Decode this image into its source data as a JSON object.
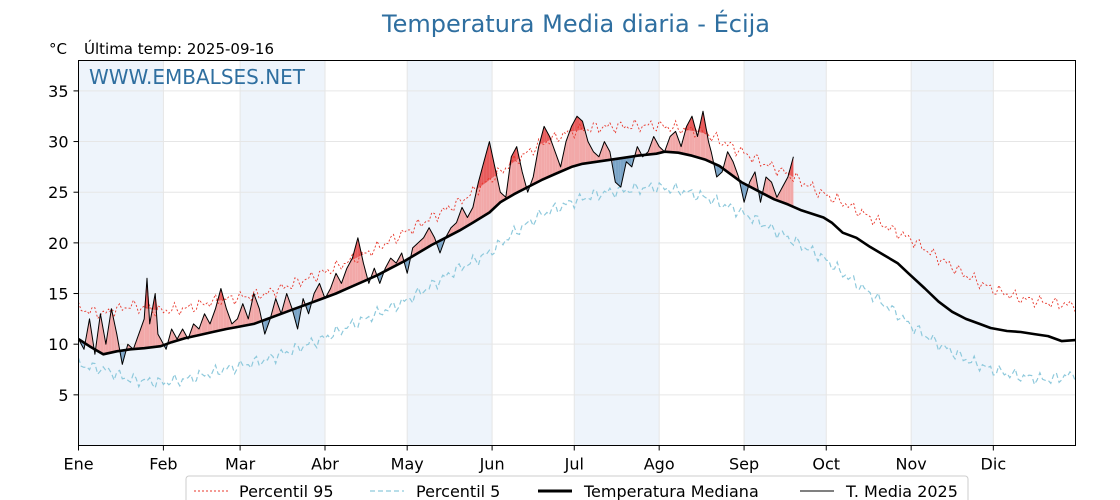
{
  "chart_data": {
    "type": "line",
    "title": "Temperatura Media diaria - Écija",
    "subtitle": "Última temp: 2025-09-16",
    "ylabel": "°C",
    "watermark": "WWW.EMBALSES.NET",
    "ylim": [
      0,
      38
    ],
    "yticks": [
      5,
      10,
      15,
      20,
      25,
      30,
      35
    ],
    "months": [
      "Ene",
      "Feb",
      "Mar",
      "Abr",
      "May",
      "Jun",
      "Jul",
      "Ago",
      "Sep",
      "Oct",
      "Nov",
      "Dic"
    ],
    "days_in_year": 365,
    "grid": true,
    "shaded_months": true,
    "legend_position": "bottom",
    "colors": {
      "p95": "#e8362a",
      "p5": "#8ec9dc",
      "median": "#000000",
      "current": "#000000",
      "above_fill": "#f2a8a8",
      "above_strong": "#e85c5c",
      "below_fill": "#7aa4c7",
      "month_shade": "#eef4fb",
      "title": "#2f6fa0"
    },
    "series": [
      {
        "name": "Percentil 95",
        "key": "p95",
        "style": "dotted",
        "points": [
          [
            1,
            13.5
          ],
          [
            10,
            13.0
          ],
          [
            20,
            13.8
          ],
          [
            31,
            13.3
          ],
          [
            40,
            13.5
          ],
          [
            50,
            14.2
          ],
          [
            59,
            14.6
          ],
          [
            70,
            15.0
          ],
          [
            80,
            16.0
          ],
          [
            90,
            17.0
          ],
          [
            100,
            18.2
          ],
          [
            110,
            19.5
          ],
          [
            120,
            21.0
          ],
          [
            130,
            22.5
          ],
          [
            140,
            24.0
          ],
          [
            151,
            26.2
          ],
          [
            160,
            28.0
          ],
          [
            170,
            29.8
          ],
          [
            181,
            31.0
          ],
          [
            190,
            31.4
          ],
          [
            200,
            31.5
          ],
          [
            212,
            31.6
          ],
          [
            220,
            31.3
          ],
          [
            230,
            30.8
          ],
          [
            243,
            29.0
          ],
          [
            250,
            28.0
          ],
          [
            260,
            26.8
          ],
          [
            273,
            24.8
          ],
          [
            280,
            24.0
          ],
          [
            290,
            22.5
          ],
          [
            300,
            21.0
          ],
          [
            304,
            20.5
          ],
          [
            315,
            18.5
          ],
          [
            325,
            16.8
          ],
          [
            334,
            15.5
          ],
          [
            345,
            14.5
          ],
          [
            355,
            14.1
          ],
          [
            365,
            13.8
          ]
        ]
      },
      {
        "name": "Percentil 5",
        "key": "p5",
        "style": "dashed",
        "points": [
          [
            1,
            8.0
          ],
          [
            10,
            7.5
          ],
          [
            20,
            6.5
          ],
          [
            31,
            6.2
          ],
          [
            40,
            6.5
          ],
          [
            50,
            7.2
          ],
          [
            59,
            7.8
          ],
          [
            70,
            8.5
          ],
          [
            80,
            9.5
          ],
          [
            90,
            10.5
          ],
          [
            100,
            11.8
          ],
          [
            110,
            13.0
          ],
          [
            120,
            14.2
          ],
          [
            130,
            15.8
          ],
          [
            140,
            17.5
          ],
          [
            151,
            19.0
          ],
          [
            160,
            21.0
          ],
          [
            170,
            22.8
          ],
          [
            181,
            24.0
          ],
          [
            190,
            24.8
          ],
          [
            200,
            25.2
          ],
          [
            212,
            25.5
          ],
          [
            220,
            25.2
          ],
          [
            230,
            24.5
          ],
          [
            243,
            23.0
          ],
          [
            250,
            22.0
          ],
          [
            260,
            20.5
          ],
          [
            273,
            18.5
          ],
          [
            280,
            17.0
          ],
          [
            290,
            15.0
          ],
          [
            300,
            13.0
          ],
          [
            304,
            12.0
          ],
          [
            315,
            10.0
          ],
          [
            325,
            8.5
          ],
          [
            334,
            7.5
          ],
          [
            345,
            6.8
          ],
          [
            355,
            6.5
          ],
          [
            365,
            7.0
          ]
        ]
      },
      {
        "name": "Temperatura Mediana",
        "key": "median",
        "style": "solid-thick",
        "points": [
          [
            1,
            10.5
          ],
          [
            5,
            9.8
          ],
          [
            10,
            9.0
          ],
          [
            15,
            9.3
          ],
          [
            20,
            9.5
          ],
          [
            25,
            9.6
          ],
          [
            31,
            9.8
          ],
          [
            35,
            10.2
          ],
          [
            40,
            10.6
          ],
          [
            45,
            10.9
          ],
          [
            50,
            11.2
          ],
          [
            55,
            11.5
          ],
          [
            59,
            11.7
          ],
          [
            65,
            12.0
          ],
          [
            70,
            12.5
          ],
          [
            75,
            13.0
          ],
          [
            80,
            13.5
          ],
          [
            85,
            14.0
          ],
          [
            90,
            14.5
          ],
          [
            95,
            15.0
          ],
          [
            100,
            15.6
          ],
          [
            105,
            16.2
          ],
          [
            110,
            16.8
          ],
          [
            115,
            17.5
          ],
          [
            120,
            18.2
          ],
          [
            125,
            19.0
          ],
          [
            130,
            19.8
          ],
          [
            135,
            20.5
          ],
          [
            140,
            21.2
          ],
          [
            145,
            22.0
          ],
          [
            151,
            23.0
          ],
          [
            155,
            24.0
          ],
          [
            160,
            24.8
          ],
          [
            165,
            25.5
          ],
          [
            170,
            26.2
          ],
          [
            175,
            26.8
          ],
          [
            181,
            27.5
          ],
          [
            185,
            27.8
          ],
          [
            190,
            28.0
          ],
          [
            195,
            28.2
          ],
          [
            200,
            28.4
          ],
          [
            205,
            28.6
          ],
          [
            212,
            28.8
          ],
          [
            215,
            29.0
          ],
          [
            220,
            28.9
          ],
          [
            225,
            28.6
          ],
          [
            230,
            28.2
          ],
          [
            235,
            27.6
          ],
          [
            243,
            26.0
          ],
          [
            250,
            25.0
          ],
          [
            255,
            24.3
          ],
          [
            260,
            23.8
          ],
          [
            265,
            23.2
          ],
          [
            273,
            22.5
          ],
          [
            276,
            22.0
          ],
          [
            280,
            21.0
          ],
          [
            285,
            20.5
          ],
          [
            290,
            19.6
          ],
          [
            295,
            18.8
          ],
          [
            300,
            18.0
          ],
          [
            304,
            17.0
          ],
          [
            310,
            15.5
          ],
          [
            315,
            14.2
          ],
          [
            320,
            13.2
          ],
          [
            325,
            12.5
          ],
          [
            330,
            12.0
          ],
          [
            334,
            11.6
          ],
          [
            340,
            11.3
          ],
          [
            345,
            11.2
          ],
          [
            350,
            11.0
          ],
          [
            355,
            10.8
          ],
          [
            360,
            10.3
          ],
          [
            365,
            10.4
          ]
        ]
      },
      {
        "name": "T. Media 2025",
        "key": "current",
        "style": "solid-thin",
        "points": [
          [
            1,
            10.5
          ],
          [
            3,
            9.5
          ],
          [
            5,
            12.5
          ],
          [
            7,
            9.0
          ],
          [
            9,
            13.0
          ],
          [
            11,
            10.0
          ],
          [
            13,
            13.5
          ],
          [
            15,
            11.0
          ],
          [
            17,
            8.0
          ],
          [
            19,
            10.0
          ],
          [
            21,
            9.5
          ],
          [
            23,
            11.0
          ],
          [
            25,
            12.5
          ],
          [
            26,
            16.5
          ],
          [
            27,
            12.0
          ],
          [
            29,
            15.0
          ],
          [
            30,
            11.0
          ],
          [
            31,
            10.5
          ],
          [
            33,
            9.5
          ],
          [
            35,
            11.5
          ],
          [
            37,
            10.5
          ],
          [
            39,
            11.5
          ],
          [
            41,
            10.5
          ],
          [
            43,
            12.0
          ],
          [
            45,
            11.5
          ],
          [
            47,
            13.0
          ],
          [
            49,
            12.0
          ],
          [
            51,
            13.5
          ],
          [
            53,
            15.5
          ],
          [
            55,
            13.5
          ],
          [
            57,
            12.0
          ],
          [
            59,
            12.5
          ],
          [
            61,
            14.0
          ],
          [
            63,
            12.5
          ],
          [
            65,
            15.0
          ],
          [
            67,
            13.5
          ],
          [
            69,
            11.0
          ],
          [
            71,
            12.5
          ],
          [
            73,
            14.5
          ],
          [
            75,
            13.0
          ],
          [
            77,
            15.0
          ],
          [
            79,
            13.5
          ],
          [
            81,
            11.5
          ],
          [
            83,
            14.5
          ],
          [
            85,
            13.0
          ],
          [
            87,
            15.0
          ],
          [
            89,
            16.0
          ],
          [
            91,
            14.5
          ],
          [
            93,
            15.5
          ],
          [
            95,
            17.0
          ],
          [
            97,
            16.0
          ],
          [
            99,
            17.5
          ],
          [
            101,
            18.5
          ],
          [
            103,
            20.5
          ],
          [
            105,
            18.0
          ],
          [
            107,
            16.0
          ],
          [
            109,
            17.5
          ],
          [
            111,
            16.0
          ],
          [
            113,
            17.5
          ],
          [
            115,
            18.5
          ],
          [
            117,
            18.0
          ],
          [
            119,
            19.0
          ],
          [
            121,
            17.0
          ],
          [
            123,
            19.5
          ],
          [
            125,
            20.0
          ],
          [
            127,
            20.5
          ],
          [
            129,
            21.5
          ],
          [
            131,
            20.5
          ],
          [
            133,
            19.0
          ],
          [
            135,
            20.5
          ],
          [
            137,
            21.5
          ],
          [
            139,
            22.0
          ],
          [
            141,
            23.5
          ],
          [
            143,
            22.5
          ],
          [
            145,
            23.5
          ],
          [
            147,
            26.0
          ],
          [
            149,
            28.0
          ],
          [
            151,
            30.0
          ],
          [
            153,
            27.5
          ],
          [
            155,
            25.0
          ],
          [
            157,
            24.5
          ],
          [
            159,
            28.5
          ],
          [
            161,
            29.5
          ],
          [
            163,
            27.0
          ],
          [
            165,
            25.0
          ],
          [
            167,
            26.5
          ],
          [
            169,
            29.5
          ],
          [
            171,
            31.5
          ],
          [
            173,
            30.5
          ],
          [
            175,
            29.0
          ],
          [
            177,
            27.5
          ],
          [
            179,
            30.0
          ],
          [
            181,
            31.5
          ],
          [
            183,
            32.5
          ],
          [
            185,
            32.0
          ],
          [
            187,
            30.0
          ],
          [
            189,
            29.0
          ],
          [
            191,
            28.5
          ],
          [
            193,
            30.0
          ],
          [
            195,
            29.0
          ],
          [
            197,
            26.0
          ],
          [
            199,
            25.5
          ],
          [
            201,
            28.0
          ],
          [
            203,
            27.5
          ],
          [
            205,
            29.5
          ],
          [
            207,
            28.5
          ],
          [
            209,
            29.0
          ],
          [
            211,
            30.5
          ],
          [
            213,
            29.5
          ],
          [
            215,
            29.0
          ],
          [
            217,
            30.5
          ],
          [
            219,
            31.0
          ],
          [
            221,
            29.5
          ],
          [
            223,
            31.5
          ],
          [
            225,
            32.5
          ],
          [
            227,
            30.5
          ],
          [
            229,
            33.0
          ],
          [
            231,
            30.0
          ],
          [
            232,
            29.0
          ],
          [
            234,
            26.5
          ],
          [
            236,
            27.0
          ],
          [
            238,
            29.0
          ],
          [
            240,
            28.0
          ],
          [
            242,
            26.5
          ],
          [
            244,
            24.0
          ],
          [
            246,
            26.0
          ],
          [
            248,
            27.0
          ],
          [
            250,
            24.0
          ],
          [
            252,
            26.5
          ],
          [
            254,
            26.0
          ],
          [
            256,
            24.5
          ],
          [
            258,
            25.5
          ],
          [
            260,
            26.5
          ],
          [
            262,
            28.5
          ]
        ]
      }
    ]
  }
}
